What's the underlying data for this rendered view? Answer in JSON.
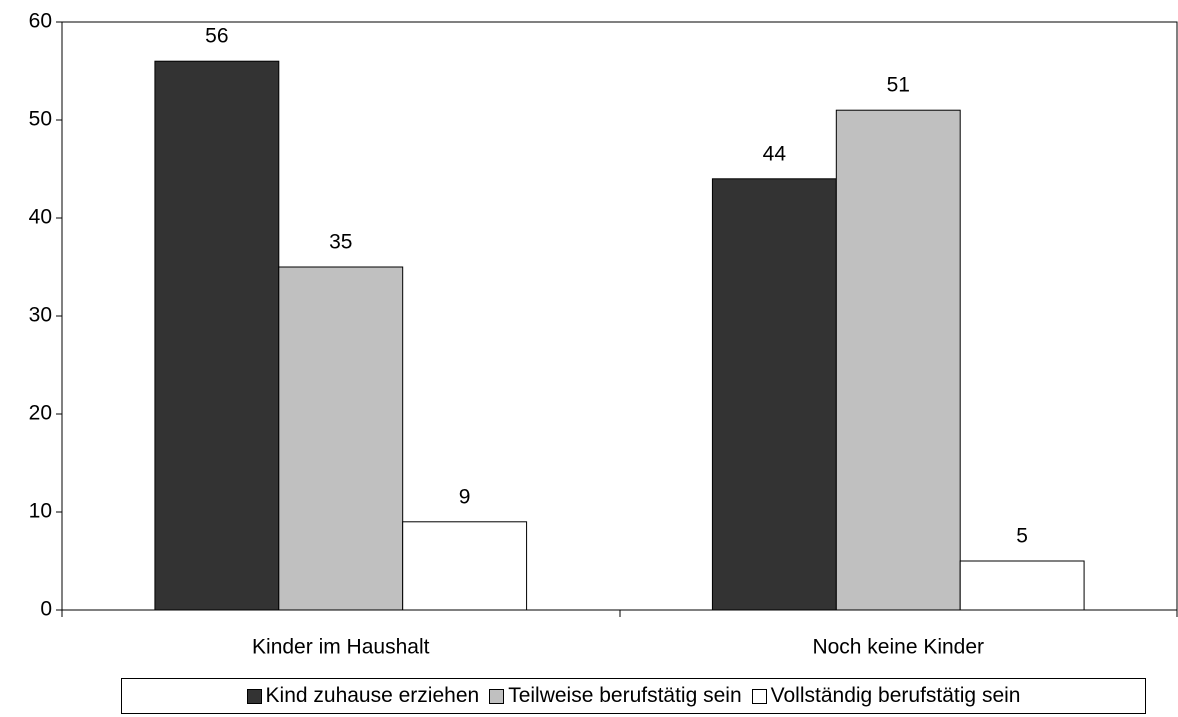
{
  "chart_data": {
    "type": "bar",
    "categories": [
      "Kinder im Haushalt",
      "Noch keine Kinder"
    ],
    "series": [
      {
        "name": "Kind zuhause erziehen",
        "color": "#333333",
        "values": [
          56,
          44
        ]
      },
      {
        "name": "Teilweise berufstätig sein",
        "color": "#c0c0c0",
        "values": [
          35,
          51
        ]
      },
      {
        "name": "Vollständig berufstätig sein",
        "color": "#ffffff",
        "values": [
          9,
          5
        ]
      }
    ],
    "ylim": [
      0,
      60
    ],
    "yticks": [
      0,
      10,
      20,
      30,
      40,
      50,
      60
    ],
    "legend": "bottom"
  }
}
